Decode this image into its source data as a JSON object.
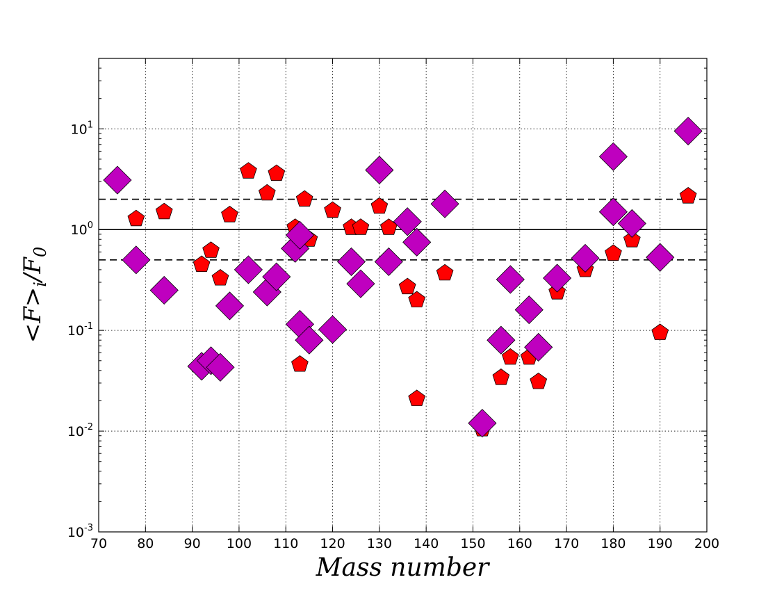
{
  "chart_data": {
    "type": "scatter",
    "xlabel": "Mass number",
    "ylabel": "<F>_i / F_0",
    "xlim": [
      70,
      200
    ],
    "ylim": [
      0.001,
      50
    ],
    "yscale": "log",
    "grid": true,
    "x_ticks": [
      "70",
      "80",
      "90",
      "100",
      "110",
      "120",
      "130",
      "140",
      "150",
      "160",
      "170",
      "180",
      "190",
      "200"
    ],
    "y_ticks": [
      {
        "value": 0.001,
        "base": "10",
        "exp": "-3"
      },
      {
        "value": 0.01,
        "base": "10",
        "exp": "-2"
      },
      {
        "value": 0.1,
        "base": "10",
        "exp": "-1"
      },
      {
        "value": 1,
        "base": "10",
        "exp": "0"
      },
      {
        "value": 10,
        "base": "10",
        "exp": "1"
      }
    ],
    "reference_lines": [
      {
        "y": 1.0,
        "style": "solid"
      },
      {
        "y": 2.0,
        "style": "dashed"
      },
      {
        "y": 0.5,
        "style": "dashed"
      }
    ],
    "series": [
      {
        "marker": "pentagon",
        "color": "#ff0000",
        "points": [
          [
            78,
            1.28
          ],
          [
            84,
            1.5
          ],
          [
            92,
            0.45
          ],
          [
            94,
            0.62
          ],
          [
            96,
            0.33
          ],
          [
            98,
            1.4
          ],
          [
            102,
            3.8
          ],
          [
            106,
            2.3
          ],
          [
            108,
            3.6
          ],
          [
            112,
            1.05
          ],
          [
            113,
            0.046
          ],
          [
            114,
            2.0
          ],
          [
            115,
            0.8
          ],
          [
            120,
            1.55
          ],
          [
            124,
            1.05
          ],
          [
            126,
            1.05
          ],
          [
            130,
            1.7
          ],
          [
            132,
            1.05
          ],
          [
            136,
            0.27
          ],
          [
            138,
            0.2
          ],
          [
            138,
            0.021
          ],
          [
            144,
            0.37
          ],
          [
            152,
            0.0105
          ],
          [
            156,
            0.034
          ],
          [
            158,
            0.054
          ],
          [
            162,
            0.054
          ],
          [
            164,
            0.031
          ],
          [
            168,
            0.24
          ],
          [
            174,
            0.4
          ],
          [
            180,
            0.58
          ],
          [
            184,
            0.79
          ],
          [
            190,
            0.095
          ],
          [
            196,
            2.15
          ]
        ]
      },
      {
        "marker": "diamond",
        "color": "#bf00bf",
        "points": [
          [
            74,
            3.1
          ],
          [
            78,
            0.5
          ],
          [
            84,
            0.25
          ],
          [
            92,
            0.044
          ],
          [
            94,
            0.05
          ],
          [
            96,
            0.043
          ],
          [
            98,
            0.175
          ],
          [
            102,
            0.4
          ],
          [
            106,
            0.24
          ],
          [
            108,
            0.34
          ],
          [
            112,
            0.65
          ],
          [
            113,
            0.88
          ],
          [
            113,
            0.115
          ],
          [
            115,
            0.08
          ],
          [
            120,
            0.102
          ],
          [
            124,
            0.48
          ],
          [
            126,
            0.29
          ],
          [
            130,
            3.9
          ],
          [
            132,
            0.48
          ],
          [
            136,
            1.2
          ],
          [
            138,
            0.75
          ],
          [
            144,
            1.8
          ],
          [
            152,
            0.012
          ],
          [
            156,
            0.08
          ],
          [
            158,
            0.32
          ],
          [
            162,
            0.16
          ],
          [
            164,
            0.068
          ],
          [
            168,
            0.33
          ],
          [
            174,
            0.52
          ],
          [
            180,
            5.3
          ],
          [
            180,
            1.5
          ],
          [
            184,
            1.15
          ],
          [
            190,
            0.53
          ],
          [
            196,
            9.5
          ]
        ]
      }
    ]
  }
}
